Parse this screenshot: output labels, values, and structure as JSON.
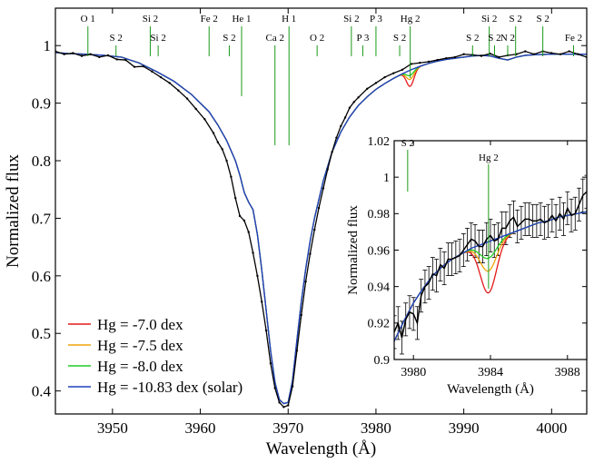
{
  "chart_data": [
    {
      "type": "line",
      "xlabel": "Wavelength (Å)",
      "ylabel": "Normalized flux",
      "xlim": [
        3943.5,
        4004
      ],
      "ylim": [
        0.36,
        1.065
      ],
      "xticks": [
        3950,
        3960,
        3970,
        3980,
        3990,
        4000
      ],
      "yticks": [
        0.4,
        0.5,
        0.6,
        0.7,
        0.8,
        0.9,
        1
      ],
      "grid": false,
      "legend": "bottom-left",
      "series": [
        {
          "name": "Hg = -7.0 dex",
          "color": "#e41a1c"
        },
        {
          "name": "Hg = -7.5 dex",
          "color": "#f0a30a"
        },
        {
          "name": "Hg = -8.0 dex",
          "color": "#22cc22"
        },
        {
          "name": "Hg = -10.83 dex (solar)",
          "color": "#2040c0"
        }
      ],
      "hg_dips": [
        {
          "name": "Hg = -7.0 dex",
          "depth": 0.028
        },
        {
          "name": "Hg = -7.5 dex",
          "depth": 0.016
        },
        {
          "name": "Hg = -8.0 dex",
          "depth": 0.009
        }
      ],
      "observed_color": "#000000",
      "observed": {
        "x": [
          3943.5,
          3944.5,
          3945.5,
          3946.5,
          3947.5,
          3948.5,
          3949.5,
          3950.5,
          3951.5,
          3952.5,
          3953.5,
          3954.5,
          3955.5,
          3956.5,
          3957.5,
          3958.5,
          3959.5,
          3960.5,
          3961.5,
          3962.0,
          3962.5,
          3963.0,
          3963.5,
          3964.0,
          3964.5,
          3965.0,
          3965.5,
          3966.0,
          3966.5,
          3967.0,
          3967.5,
          3968.0,
          3968.5,
          3969.0,
          3969.5,
          3970.0,
          3970.5,
          3971.0,
          3971.5,
          3972.0,
          3972.5,
          3973.0,
          3973.5,
          3974.0,
          3974.5,
          3975.0,
          3975.5,
          3976.0,
          3976.5,
          3977.0,
          3977.5,
          3978.0,
          3979.0,
          3980.0,
          3981.0,
          3982.0,
          3983.0,
          3984.0,
          3985.0,
          3986.0,
          3987.0,
          3988.0,
          3989.0,
          3990.0,
          3991.0,
          3992.0,
          3993.0,
          3994.0,
          3995.0,
          3996.0,
          3997.0,
          3998.0,
          3999.0,
          4000.0,
          4001.0,
          4002.0,
          4003.0,
          4004.0
        ],
        "y": [
          0.99,
          0.985,
          0.987,
          0.982,
          0.985,
          0.98,
          0.983,
          0.976,
          0.975,
          0.963,
          0.964,
          0.955,
          0.945,
          0.935,
          0.922,
          0.908,
          0.89,
          0.872,
          0.848,
          0.832,
          0.82,
          0.8,
          0.772,
          0.735,
          0.704,
          0.696,
          0.676,
          0.64,
          0.6,
          0.555,
          0.505,
          0.448,
          0.405,
          0.38,
          0.372,
          0.375,
          0.408,
          0.47,
          0.532,
          0.59,
          0.638,
          0.68,
          0.718,
          0.752,
          0.785,
          0.815,
          0.84,
          0.86,
          0.875,
          0.892,
          0.902,
          0.91,
          0.925,
          0.935,
          0.945,
          0.952,
          0.958,
          0.968,
          0.97,
          0.972,
          0.975,
          0.978,
          0.98,
          0.985,
          0.984,
          0.982,
          0.986,
          0.98,
          0.983,
          0.985,
          0.99,
          0.985,
          0.99,
          0.987,
          0.985,
          0.99,
          0.985,
          0.98
        ]
      },
      "model": {
        "x": [
          3943.5,
          3945,
          3947,
          3949,
          3951,
          3953,
          3955,
          3957,
          3959,
          3961,
          3962,
          3963,
          3964,
          3964.5,
          3965,
          3965.5,
          3966,
          3966.5,
          3967,
          3967.5,
          3968,
          3968.5,
          3969,
          3969.5,
          3970,
          3970.5,
          3971,
          3971.5,
          3972,
          3972.5,
          3973,
          3974,
          3975,
          3976,
          3977,
          3978,
          3979,
          3980,
          3981,
          3982,
          3983,
          3984,
          3985,
          3986,
          3987,
          3988,
          3989,
          3990,
          3991,
          3992,
          3993,
          3994,
          3995,
          3996,
          3997,
          3998,
          4000,
          4002,
          4004
        ],
        "y": [
          0.988,
          0.986,
          0.985,
          0.983,
          0.98,
          0.97,
          0.955,
          0.938,
          0.915,
          0.885,
          0.862,
          0.835,
          0.8,
          0.775,
          0.745,
          0.728,
          0.715,
          0.672,
          0.61,
          0.54,
          0.47,
          0.415,
          0.385,
          0.378,
          0.38,
          0.418,
          0.488,
          0.555,
          0.612,
          0.66,
          0.7,
          0.765,
          0.815,
          0.85,
          0.876,
          0.896,
          0.911,
          0.924,
          0.934,
          0.943,
          0.951,
          0.958,
          0.964,
          0.969,
          0.973,
          0.976,
          0.978,
          0.98,
          0.982,
          0.983,
          0.982,
          0.978,
          0.975,
          0.98,
          0.983,
          0.984,
          0.985,
          0.985,
          0.985
        ]
      },
      "line_ids": [
        {
          "label": "O 1",
          "x": 3947.2,
          "row": "top"
        },
        {
          "label": "S 2",
          "x": 3950.4,
          "row": "mid"
        },
        {
          "label": "Si 2",
          "x": 3954.3,
          "row": "top"
        },
        {
          "label": "Si 2",
          "x": 3955.2,
          "row": "mid"
        },
        {
          "label": "Fe 2",
          "x": 3961.0,
          "row": "top"
        },
        {
          "label": "S 2",
          "x": 3963.3,
          "row": "mid"
        },
        {
          "label": "He 1",
          "x": 3964.7,
          "row": "top"
        },
        {
          "label": "Ca 2",
          "x": 3968.5,
          "row": "mid"
        },
        {
          "label": "H 1",
          "x": 3970.1,
          "row": "top"
        },
        {
          "label": "O 2",
          "x": 3973.3,
          "row": "mid"
        },
        {
          "label": "Si 2",
          "x": 3977.2,
          "row": "top"
        },
        {
          "label": "P 3",
          "x": 3978.5,
          "row": "mid"
        },
        {
          "label": "P 3",
          "x": 3980.0,
          "row": "top"
        },
        {
          "label": "S 2",
          "x": 3982.7,
          "row": "mid"
        },
        {
          "label": "Hg 2",
          "x": 3983.9,
          "row": "top"
        },
        {
          "label": "S 2",
          "x": 3991.0,
          "row": "mid"
        },
        {
          "label": "Si 2",
          "x": 3992.9,
          "row": "top"
        },
        {
          "label": "S 2",
          "x": 3993.5,
          "row": "mid"
        },
        {
          "label": "S 2",
          "x": 3995.9,
          "row": "top"
        },
        {
          "label": "N 2",
          "x": 3995.0,
          "row": "mid"
        },
        {
          "label": "S 2",
          "x": 3999.0,
          "row": "top"
        },
        {
          "label": "Fe 2",
          "x": 4002.5,
          "row": "mid"
        }
      ]
    },
    {
      "type": "line",
      "xlabel": "Wavelength (Å)",
      "ylabel": "Normalized flux",
      "xlim": [
        3979,
        3989
      ],
      "ylim": [
        0.9,
        1.02
      ],
      "xticks": [
        3980,
        3984,
        3988
      ],
      "yticks": [
        0.9,
        0.92,
        0.94,
        0.96,
        0.98,
        1,
        1.02
      ],
      "grid": false,
      "observed": {
        "x": [
          3979.0,
          3979.2,
          3979.4,
          3979.6,
          3979.8,
          3980.0,
          3980.2,
          3980.4,
          3980.6,
          3980.8,
          3981.0,
          3981.2,
          3981.4,
          3981.6,
          3981.8,
          3982.0,
          3982.2,
          3982.4,
          3982.6,
          3982.8,
          3983.0,
          3983.2,
          3983.4,
          3983.6,
          3983.8,
          3984.0,
          3984.2,
          3984.4,
          3984.6,
          3984.8,
          3985.0,
          3985.2,
          3985.4,
          3985.6,
          3985.8,
          3986.0,
          3986.2,
          3986.4,
          3986.6,
          3986.8,
          3987.0,
          3987.2,
          3987.4,
          3987.6,
          3987.8,
          3988.0,
          3988.2,
          3988.4,
          3988.6,
          3988.8,
          3989.0
        ],
        "y": [
          0.915,
          0.92,
          0.912,
          0.922,
          0.926,
          0.925,
          0.92,
          0.935,
          0.94,
          0.942,
          0.947,
          0.946,
          0.952,
          0.95,
          0.955,
          0.955,
          0.956,
          0.957,
          0.96,
          0.963,
          0.966,
          0.965,
          0.962,
          0.962,
          0.966,
          0.968,
          0.965,
          0.966,
          0.972,
          0.972,
          0.976,
          0.978,
          0.973,
          0.975,
          0.977,
          0.977,
          0.976,
          0.976,
          0.977,
          0.975,
          0.976,
          0.979,
          0.976,
          0.98,
          0.977,
          0.983,
          0.979,
          0.98,
          0.985,
          0.99,
          0.992
        ],
        "yerr": 0.009
      },
      "model": {
        "x": [
          3979.0,
          3979.5,
          3980.0,
          3980.5,
          3981.0,
          3981.5,
          3982.0,
          3982.5,
          3983.0,
          3983.5,
          3984.0,
          3984.5,
          3985.0,
          3985.5,
          3986.0,
          3986.5,
          3987.0,
          3987.5,
          3988.0,
          3988.5,
          3989.0
        ],
        "y": [
          0.91,
          0.921,
          0.931,
          0.939,
          0.946,
          0.951,
          0.955,
          0.958,
          0.961,
          0.963,
          0.965,
          0.967,
          0.969,
          0.971,
          0.973,
          0.975,
          0.976,
          0.978,
          0.979,
          0.98,
          0.981
        ]
      },
      "hg_dip_center": 3983.9,
      "hg_dip_width": 0.42,
      "line_ids": [
        {
          "label": "S 2",
          "x": 3979.7
        },
        {
          "label": "Hg 2",
          "x": 3983.9
        }
      ]
    }
  ]
}
